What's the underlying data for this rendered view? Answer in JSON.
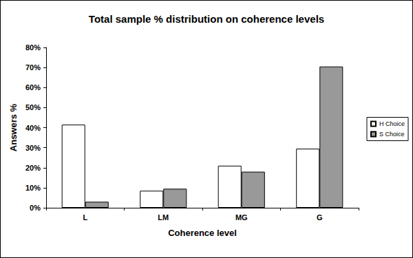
{
  "chart_data": {
    "type": "bar",
    "title": "Total sample % distribution on coherence levels",
    "x_label": "Coherence level",
    "y_label": "Answers %",
    "categories": [
      "L",
      "LM",
      "MG",
      "G"
    ],
    "series": [
      {
        "name": "H Choice",
        "color": "#ffffff",
        "values": [
          41.5,
          8.5,
          21,
          29.5
        ]
      },
      {
        "name": "S Choice",
        "color": "#999999",
        "values": [
          3,
          9.5,
          18,
          70.5
        ]
      }
    ],
    "ylim": [
      0,
      80
    ],
    "yticks": [
      {
        "value": 0,
        "label": "0%"
      },
      {
        "value": 10,
        "label": "10%"
      },
      {
        "value": 20,
        "label": "20%"
      },
      {
        "value": 30,
        "label": "30%"
      },
      {
        "value": 40,
        "label": "40%"
      },
      {
        "value": 50,
        "label": "50%"
      },
      {
        "value": 60,
        "label": "60%"
      },
      {
        "value": 70,
        "label": "70%"
      },
      {
        "value": 80,
        "label": "80%"
      }
    ],
    "grid": false,
    "legend": "right"
  }
}
